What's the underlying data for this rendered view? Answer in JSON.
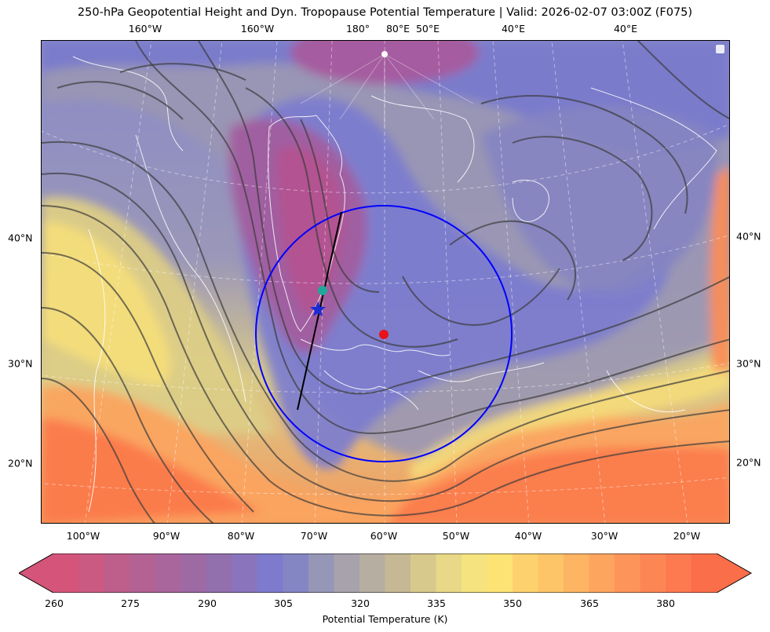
{
  "title": "250-hPa Geopotential Height and Dyn. Tropopause Potential Temperature   |  Valid: 2026-02-07 03:00Z (F075)",
  "top_lon_labels": [
    "160°W",
    "160°W",
    "180°",
    "80°E",
    "50°E",
    "40°E",
    "40°E"
  ],
  "bottom_lon_labels": [
    "100°W",
    "90°W",
    "80°W",
    "70°W",
    "60°W",
    "50°W",
    "40°W",
    "30°W",
    "20°W"
  ],
  "left_lat_labels": [
    "40°N",
    "30°N",
    "20°N"
  ],
  "right_lat_labels": [
    "40°N",
    "30°N",
    "20°N"
  ],
  "markers": [
    {
      "name": "red-dot",
      "color": "#e8141a",
      "lat": 32.5,
      "lon": -60.0
    },
    {
      "name": "teal-dot",
      "color": "#1fa89a",
      "lat": 36.1,
      "lon": -69.0
    },
    {
      "name": "blue-star",
      "color": "#1a2bd6",
      "lat": 34.3,
      "lon": -69.8
    }
  ],
  "circle": {
    "color": "#0000ff",
    "center_lat": 32.5,
    "center_lon": -60.0
  },
  "cross_section": {
    "color": "#000000",
    "start": {
      "lat": 26.0,
      "lon": -72.5
    },
    "end": {
      "lat": 42.0,
      "lon": -67.0
    }
  },
  "colorbar": {
    "label": "Potential Temperature (K)",
    "ticks": [
      "260",
      "275",
      "290",
      "305",
      "320",
      "335",
      "350",
      "365",
      "380"
    ],
    "min": 260,
    "max": 390,
    "step": 5,
    "colors": [
      "#d4547a",
      "#cb5a82",
      "#be5e8b",
      "#b46293",
      "#a9669c",
      "#9e6aa4",
      "#9270ad",
      "#8a75bd",
      "#7e7ace",
      "#8486c4",
      "#9696b6",
      "#a7a2ac",
      "#b7aea2",
      "#c6b894",
      "#d7c98c",
      "#e8d887",
      "#f5e37f",
      "#fde374",
      "#fdd26e",
      "#fdc468",
      "#fdb463",
      "#fda45e",
      "#fd955a",
      "#fd8655",
      "#fd7a50",
      "#fb6e4a"
    ]
  }
}
